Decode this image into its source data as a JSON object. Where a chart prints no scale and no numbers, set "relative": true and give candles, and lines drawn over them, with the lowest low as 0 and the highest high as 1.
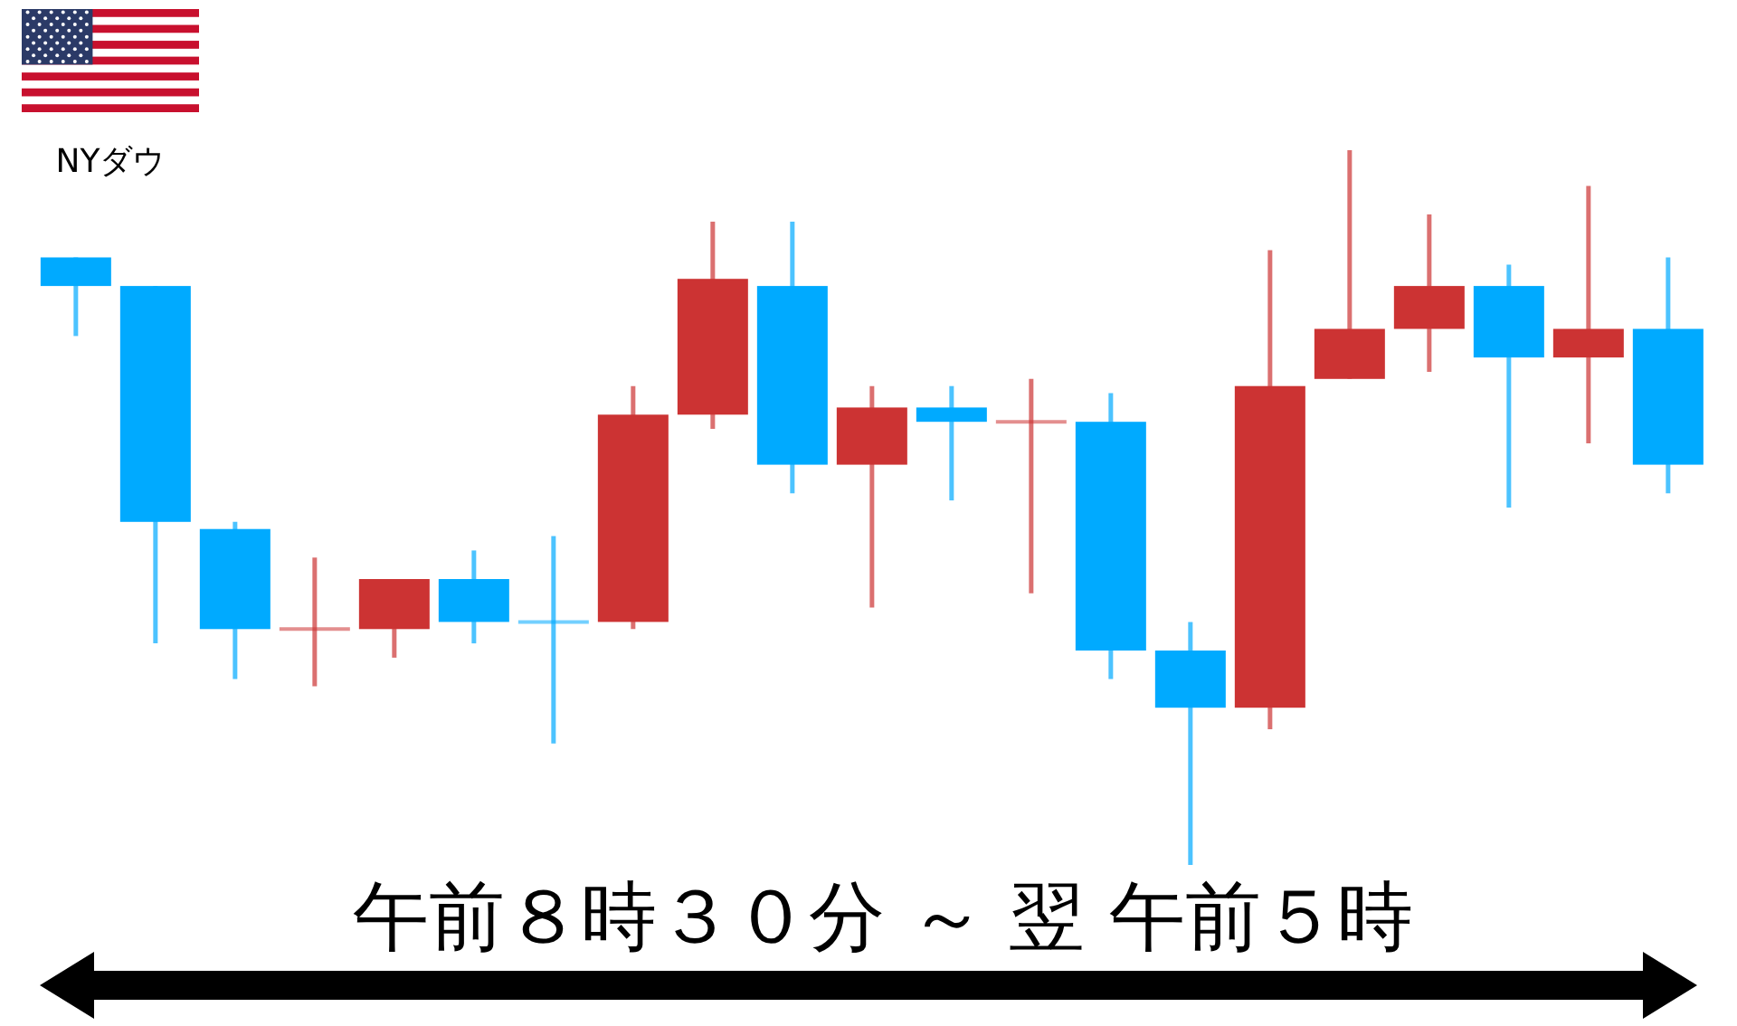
{
  "chart_data": {
    "type": "candlestick",
    "title": "NYダウ",
    "xlabel": "午前８時３０分 ～ 翌 午前５時",
    "categories": [
      null,
      null,
      null,
      null,
      null,
      null,
      null,
      null,
      null,
      null,
      null,
      null,
      null,
      null,
      null,
      null,
      null,
      null,
      null,
      null,
      null
    ],
    "ohlc": [
      [
        0.85,
        0.85,
        0.74,
        0.81
      ],
      [
        0.81,
        0.81,
        0.31,
        0.48
      ],
      [
        0.47,
        0.48,
        0.26,
        0.33
      ],
      [
        0.33,
        0.43,
        0.25,
        0.33
      ],
      [
        0.33,
        0.4,
        0.29,
        0.4
      ],
      [
        0.4,
        0.44,
        0.31,
        0.34
      ],
      [
        0.34,
        0.46,
        0.17,
        0.34
      ],
      [
        0.34,
        0.67,
        0.33,
        0.63
      ],
      [
        0.63,
        0.9,
        0.61,
        0.82
      ],
      [
        0.81,
        0.9,
        0.52,
        0.56
      ],
      [
        0.56,
        0.67,
        0.36,
        0.64
      ],
      [
        0.64,
        0.67,
        0.51,
        0.62
      ],
      [
        0.62,
        0.68,
        0.38,
        0.62
      ],
      [
        0.62,
        0.66,
        0.26,
        0.3
      ],
      [
        0.3,
        0.34,
        0,
        0.22
      ],
      [
        0.22,
        0.86,
        0.19,
        0.67
      ],
      [
        0.68,
        1,
        0.68,
        0.75
      ],
      [
        0.75,
        0.91,
        0.69,
        0.81
      ],
      [
        0.81,
        0.84,
        0.5,
        0.71
      ],
      [
        0.71,
        0.95,
        0.59,
        0.75
      ],
      [
        0.75,
        0.85,
        0.52,
        0.56
      ]
    ],
    "colors": [
      "#00aaff",
      "#00aaff",
      "#00aaff",
      "#cc3333",
      "#cc3333",
      "#00aaff",
      "#00aaff",
      "#cc3333",
      "#cc3333",
      "#00aaff",
      "#cc3333",
      "#00aaff",
      "#cc3333",
      "#00aaff",
      "#00aaff",
      "#cc3333",
      "#cc3333",
      "#cc3333",
      "#00aaff",
      "#cc3333",
      "#00aaff"
    ],
    "relative": true,
    "tick_labels": false
  }
}
